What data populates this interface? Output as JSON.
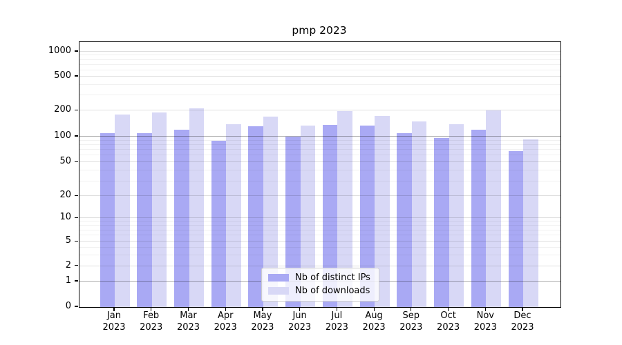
{
  "title": "pmp 2023",
  "chart_data": {
    "type": "bar",
    "title": "pmp 2023",
    "categories": [
      "Jan",
      "Feb",
      "Mar",
      "Apr",
      "May",
      "Jun",
      "Jul",
      "Aug",
      "Sep",
      "Oct",
      "Nov",
      "Dec"
    ],
    "category_year": "2023",
    "series": [
      {
        "name": "Nb of distinct IPs",
        "color": "#a9a9f4",
        "values": [
          110,
          110,
          119,
          89,
          131,
          100,
          137,
          135,
          109,
          97,
          119,
          68
        ]
      },
      {
        "name": "Nb of downloads",
        "color": "#d8d8f6",
        "values": [
          180,
          189,
          212,
          138,
          170,
          133,
          196,
          172,
          150,
          138,
          200,
          93
        ]
      }
    ],
    "yticks": [
      0,
      1,
      2,
      5,
      10,
      20,
      50,
      100,
      200,
      500,
      1000
    ],
    "minor_gridline_values": [
      3,
      4,
      6,
      7,
      8,
      9,
      30,
      40,
      60,
      70,
      80,
      90,
      300,
      400,
      600,
      700,
      800,
      900
    ],
    "emphasized_gridline_values": [
      1,
      100
    ],
    "scale": "symlog",
    "ylim": [
      0,
      1000
    ],
    "grid": true,
    "legend_position": "lower center",
    "axis_color": "#000000",
    "background_color": "#ffffff"
  }
}
